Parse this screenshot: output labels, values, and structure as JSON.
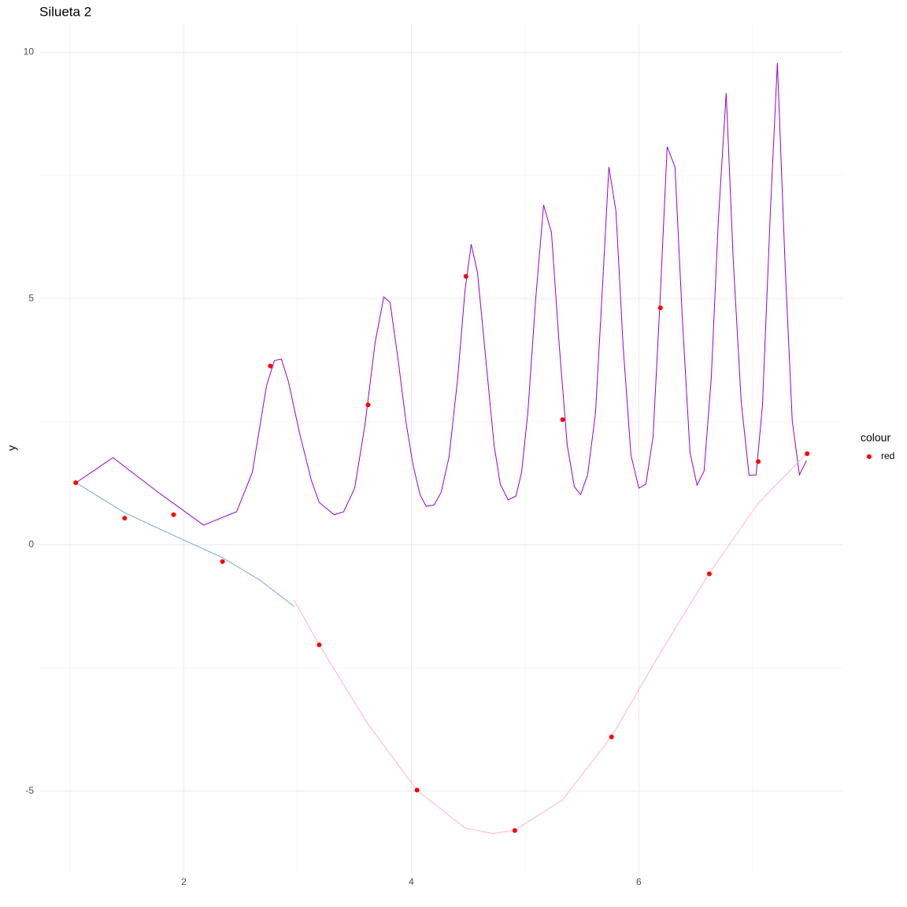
{
  "chart_data": {
    "type": "line",
    "title": "Silueta 2",
    "y_label": "y",
    "legend_title": "colour",
    "xlim": [
      0.73,
      7.79
    ],
    "ylim": [
      -6.65,
      10.58
    ],
    "xticks": [
      2,
      4,
      6
    ],
    "yticks": [
      -5,
      0,
      5,
      10
    ],
    "xminor": [
      1,
      3,
      5,
      7
    ],
    "yminor": [
      -2.5,
      2.5,
      7.5
    ],
    "grid": true,
    "series": [
      {
        "mode": "line",
        "color": "#9400D3",
        "x": [
          1.052,
          1.377,
          1.772,
          2.173,
          2.464,
          2.602,
          2.727,
          2.796,
          2.858,
          2.92,
          3.017,
          3.121,
          3.19,
          3.322,
          3.405,
          3.502,
          3.592,
          3.682,
          3.758,
          3.813,
          3.882,
          3.952,
          4.014,
          4.076,
          4.131,
          4.201,
          4.263,
          4.332,
          4.408,
          4.471,
          4.526,
          4.581,
          4.644,
          4.727,
          4.782,
          4.851,
          4.92,
          4.969,
          5.024,
          5.093,
          5.163,
          5.232,
          5.301,
          5.37,
          5.433,
          5.488,
          5.55,
          5.619,
          5.682,
          5.737,
          5.799,
          5.862,
          5.931,
          6.0,
          6.062,
          6.125,
          6.187,
          6.249,
          6.318,
          6.381,
          6.45,
          6.512,
          6.574,
          6.637,
          6.699,
          6.768,
          6.83,
          6.9,
          6.969,
          7.031,
          7.087,
          7.156,
          7.218,
          7.287,
          7.349,
          7.412,
          7.474
        ],
        "values": [
          1.26,
          1.77,
          1.07,
          0.4,
          0.67,
          1.47,
          3.23,
          3.74,
          3.77,
          3.31,
          2.27,
          1.31,
          0.86,
          0.61,
          0.67,
          1.15,
          2.43,
          4.11,
          5.03,
          4.92,
          3.79,
          2.51,
          1.63,
          1.02,
          0.78,
          0.81,
          1.07,
          1.79,
          3.39,
          5.14,
          6.1,
          5.54,
          4.03,
          2.03,
          1.23,
          0.91,
          0.99,
          1.47,
          2.67,
          4.98,
          6.9,
          6.34,
          4.03,
          2.03,
          1.18,
          1.02,
          1.42,
          2.67,
          5.3,
          7.67,
          6.77,
          4.03,
          1.82,
          1.15,
          1.23,
          2.19,
          4.98,
          8.08,
          7.67,
          4.66,
          1.87,
          1.21,
          1.5,
          3.39,
          6.58,
          9.17,
          5.78,
          2.91,
          1.41,
          1.42,
          2.83,
          6.74,
          9.78,
          5.62,
          2.51,
          1.42,
          1.71
        ]
      },
      {
        "mode": "line",
        "color": "#74a9cf",
        "x": [
          1.052,
          1.481,
          1.91,
          2.339,
          2.671,
          2.969
        ],
        "values": [
          1.26,
          0.65,
          0.19,
          -0.26,
          -0.72,
          -1.25
        ]
      },
      {
        "mode": "line",
        "color": "#ffb6c1",
        "x": [
          2.969,
          3.19,
          3.619,
          4.048,
          4.471,
          4.713,
          4.907,
          5.329,
          5.758,
          6.187,
          6.616,
          7.045,
          7.474
        ],
        "values": [
          -1.12,
          -2.03,
          -3.64,
          -4.98,
          -5.75,
          -5.86,
          -5.8,
          -5.18,
          -3.9,
          -2.2,
          -0.59,
          0.83,
          1.85
        ]
      },
      {
        "mode": "points",
        "name": "red",
        "color": "red",
        "x": [
          1.05,
          1.48,
          1.91,
          2.34,
          2.76,
          3.19,
          3.62,
          4.05,
          4.48,
          4.91,
          5.33,
          5.76,
          6.19,
          6.62,
          7.05,
          7.48
        ],
        "values": [
          1.26,
          0.54,
          0.61,
          -0.34,
          3.63,
          -2.03,
          2.84,
          -4.98,
          5.45,
          -5.8,
          2.54,
          -3.9,
          4.81,
          -0.59,
          1.69,
          1.85
        ]
      }
    ]
  }
}
